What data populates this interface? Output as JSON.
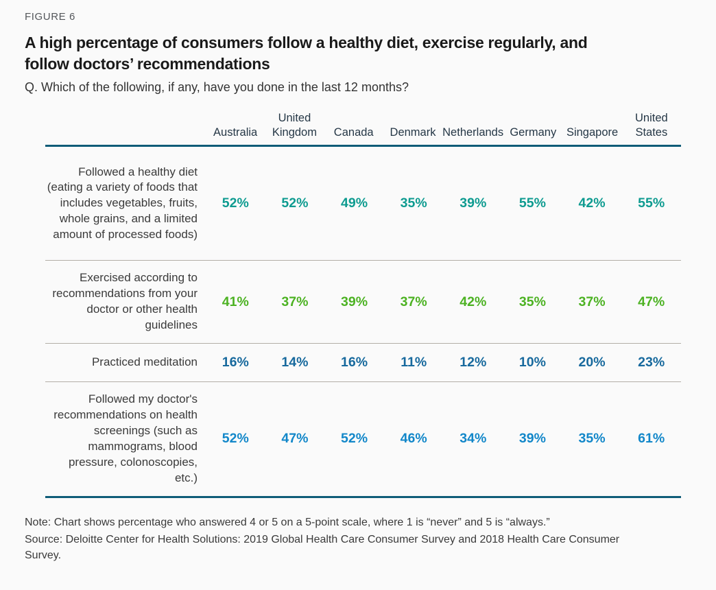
{
  "figure_label": "FIGURE 6",
  "title": "A high percentage of consumers follow a healthy diet, exercise regularly, and follow doctors’ recommendations",
  "question": "Q. Which of the following, if any, have you done in the last 12 months?",
  "chart_data": {
    "type": "table",
    "title": "A high percentage of consumers follow a healthy diet, exercise regularly, and follow doctors’ recommendations",
    "categories": [
      "Australia",
      "United Kingdom",
      "Canada",
      "Denmark",
      "Netherlands",
      "Germany",
      "Singapore",
      "United States"
    ],
    "series": [
      {
        "name": "Followed a healthy diet (eating a variety of foods that includes vegetables, fruits, whole grains, and a limited amount of processed foods)",
        "color": "#0e9b90",
        "values": [
          "52%",
          "52%",
          "49%",
          "35%",
          "39%",
          "55%",
          "42%",
          "55%"
        ]
      },
      {
        "name": "Exercised according to recommendations from your doctor or other health guidelines",
        "color": "#4cb222",
        "values": [
          "41%",
          "37%",
          "39%",
          "37%",
          "42%",
          "35%",
          "37%",
          "47%"
        ]
      },
      {
        "name": "Practiced meditation",
        "color": "#17699d",
        "values": [
          "16%",
          "14%",
          "16%",
          "11%",
          "12%",
          "10%",
          "20%",
          "23%"
        ]
      },
      {
        "name": "Followed my doctor's recommendations on health screenings (such as mammograms, blood pressure, colonoscopies, etc.)",
        "color": "#1287c9",
        "values": [
          "52%",
          "47%",
          "52%",
          "46%",
          "34%",
          "39%",
          "35%",
          "61%"
        ]
      }
    ]
  },
  "note": "Note: Chart shows percentage who answered 4 or 5 on a 5-point scale, where 1 is  “never” and 5 is “always.”",
  "source": "Source: Deloitte Center for Health Solutions: 2019 Global Health Care Consumer Survey and 2018 Health Care Consumer Survey.",
  "colors": {
    "accent_rule": "#0f5c78",
    "row_separator": "#b2aea6",
    "background": "#fafafa"
  }
}
